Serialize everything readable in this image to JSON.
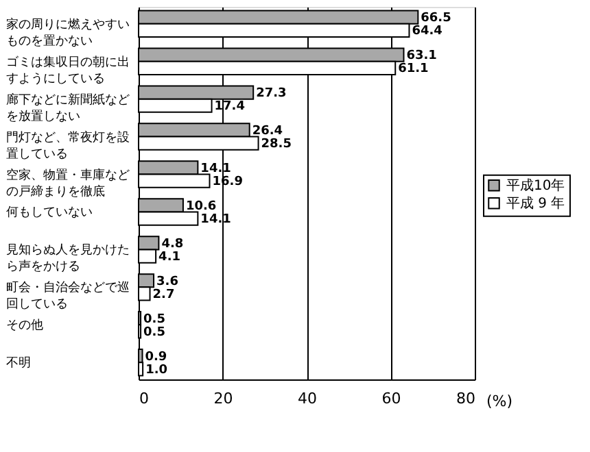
{
  "chart_data": {
    "type": "bar",
    "orientation": "horizontal",
    "categories": [
      "家の周りに燃えやすいものを置かない",
      "ゴミは集収日の朝に出すようにしている",
      "廊下などに新聞紙などを放置しない",
      "門灯など、常夜灯を設置している",
      "空家、物置・車庫などの戸締まりを徹底",
      "何もしていない",
      "見知らぬ人を見かけたら声をかける",
      "町会・自治会などで巡回している",
      "その他",
      "不明"
    ],
    "series": [
      {
        "name": "平成10年",
        "color": "#a8a8a8",
        "values": [
          66.5,
          63.1,
          27.3,
          26.4,
          14.1,
          10.6,
          4.8,
          3.6,
          0.5,
          0.9
        ],
        "value_labels": [
          "66.5",
          "63.1",
          "27.3",
          "26.4",
          "14.1",
          "10.6",
          "4.8",
          "3.6",
          "0.5",
          "0.9"
        ]
      },
      {
        "name": "平成 9 年",
        "color": "#ffffff",
        "values": [
          64.4,
          61.1,
          17.4,
          28.5,
          16.9,
          14.1,
          4.1,
          2.7,
          0.5,
          1.0
        ],
        "value_labels": [
          "64.4",
          "61.1",
          "17.4",
          "28.5",
          "16.9",
          "14.1",
          "4.1",
          "2.7",
          "0.5",
          "1.0"
        ]
      }
    ],
    "xlim": [
      0,
      80
    ],
    "xticks": [
      0,
      20,
      40,
      60,
      80
    ],
    "xlabel": "(%)",
    "grid": "x",
    "legend": "right"
  }
}
